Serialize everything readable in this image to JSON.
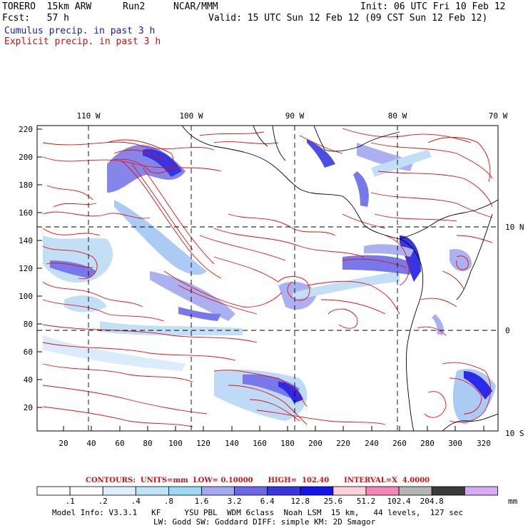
{
  "header": {
    "model": "TORERO  15km ARW",
    "run": "Run2",
    "org": "NCAR/MMM",
    "init": "Init: 06 UTC Fri 10 Feb 12",
    "fcst": "Fcst:   57 h",
    "valid": "Valid: 15 UTC Sun 12 Feb 12 (09 CST Sun 12 Feb 12)",
    "field1": "Cumulus precip. in past 3 h",
    "field2": "Explicit precip. in past 3 h"
  },
  "axes": {
    "top_lon": [
      "110 W",
      "100 W",
      "90 W",
      "80 W",
      "70 W"
    ],
    "right_lat": [
      "10 N",
      "0",
      "10 S"
    ],
    "left_y": [
      "220",
      "200",
      "180",
      "160",
      "140",
      "120",
      "100",
      "80",
      "60",
      "40",
      "20"
    ],
    "bottom_x": [
      "20",
      "40",
      "60",
      "80",
      "100",
      "120",
      "140",
      "160",
      "180",
      "200",
      "220",
      "240",
      "260",
      "280",
      "300",
      "320"
    ]
  },
  "contour_info": "CONTOURS:  UNITS=mm  LOW= 0.10000      HIGH=  102.40      INTERVAL=X  4.0000",
  "colorbar": {
    "labels": [
      ".1",
      ".2",
      ".4",
      ".8",
      "1.6",
      "3.2",
      "6.4",
      "12.8",
      "25.6",
      "51.2",
      "102.4",
      "204.8"
    ],
    "colors": [
      "#ffffff",
      "#ffffff",
      "#ddeeff",
      "#bde4fb",
      "#9ad8f5",
      "#a3a8f0",
      "#6a6ae8",
      "#3737dc",
      "#1414e6",
      "#fcd2d8",
      "#f587b6",
      "#b4b4b4",
      "#3a3a3a",
      "#d8aaf2"
    ],
    "units": "mm"
  },
  "footer": {
    "line1": "Model Info: V3.3.1   KF     YSU PBL  WDM 6class  Noah LSM  15 km,   44 levels,  127 sec",
    "line2": "LW: Godd SW: Goddard DIFF: simple KM: 2D Smagor"
  }
}
